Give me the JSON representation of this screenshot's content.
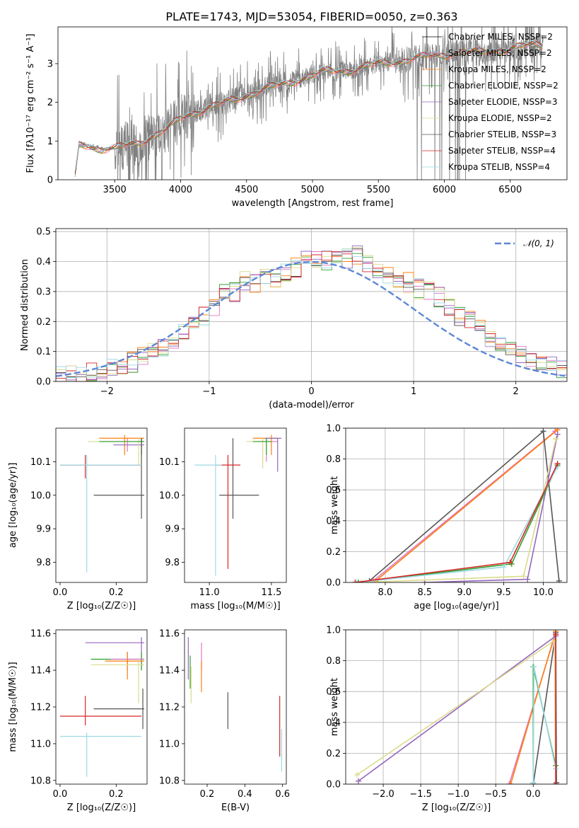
{
  "title": "PLATE=1743, MJD=53054, FIBERID=0050, z=0.363",
  "colors": [
    "#000000",
    "#e377c2",
    "#ff7f0e",
    "#2ca02c",
    "#9467bd",
    "#dbdb8d",
    "#555555",
    "#d62728",
    "#9edae5"
  ],
  "chart_data": [
    {
      "id": "spectrum",
      "type": "line",
      "xlabel": "wavelength [Angstrom, rest frame]",
      "ylabel": "Flux [f$_\\lambda$10$^{-17}$ erg cm$^{-2}$ s$^{-1}$ A$^{-1}$]",
      "ylabel_text": "Flux [fλ10⁻¹⁷ erg cm⁻² s⁻¹ A⁻¹]",
      "xlim": [
        3070,
        6930
      ],
      "ylim": [
        0,
        3.95
      ],
      "xticks": [
        3500,
        4000,
        4500,
        5000,
        5500,
        6000,
        6500
      ],
      "yticks": [
        0,
        1,
        2,
        3
      ],
      "observed_color": "#808080",
      "continuum": {
        "x": [
          3200,
          3230,
          3300,
          3400,
          3500,
          3700,
          3900,
          4000,
          4100,
          4300,
          4500,
          4700,
          4900,
          5100,
          5300,
          5500,
          5700,
          5900,
          6100,
          6300,
          6500,
          6700,
          6750
        ],
        "y": [
          0.1,
          0.9,
          0.9,
          0.8,
          0.8,
          1.0,
          1.3,
          1.6,
          1.75,
          1.95,
          2.2,
          2.4,
          2.6,
          2.8,
          2.85,
          3.0,
          3.1,
          3.2,
          3.3,
          3.3,
          3.4,
          3.5,
          3.5
        ]
      },
      "legend": [
        "Chabrier MILES, N$_{SSP}$=2",
        "Salpeter MILES, N$_{SSP}$=2",
        "Kroupa MILES, N$_{SSP}$=2",
        "Chabrier ELODIE, N$_{SSP}$=2",
        "Salpeter ELODIE, N$_{SSP}$=3",
        "Kroupa ELODIE, N$_{SSP}$=2",
        "Chabrier STELIB, N$_{SSP}$=3",
        "Salpeter STELIB, N$_{SSP}$=4",
        "Kroupa STELIB, N$_{SSP}$=4"
      ],
      "legend_text": [
        "Chabrier MILES, NSSP=2",
        "Salpeter MILES, NSSP=2",
        "Kroupa MILES, NSSP=2",
        "Chabrier ELODIE, NSSP=2",
        "Salpeter ELODIE, NSSP=3",
        "Kroupa ELODIE, NSSP=2",
        "Chabrier STELIB, NSSP=3",
        "Salpeter STELIB, NSSP=4",
        "Kroupa STELIB, NSSP=4"
      ],
      "legend_placement": "upper right",
      "grid": false
    },
    {
      "id": "residuals",
      "type": "histogram",
      "xlabel": "(data-model)/error",
      "ylabel": "Normed distribution",
      "xlim": [
        -2.5,
        2.5
      ],
      "ylim": [
        0,
        0.51
      ],
      "xticks": [
        -2,
        -1,
        0,
        1,
        2
      ],
      "yticks": [
        0.0,
        0.1,
        0.2,
        0.3,
        0.4,
        0.5
      ],
      "bin_width": 0.1,
      "bin_start": -2.5,
      "envelope": [
        0.015,
        0.02,
        0.022,
        0.03,
        0.035,
        0.045,
        0.055,
        0.065,
        0.09,
        0.1,
        0.11,
        0.14,
        0.17,
        0.2,
        0.22,
        0.25,
        0.29,
        0.3,
        0.34,
        0.33,
        0.36,
        0.34,
        0.36,
        0.38,
        0.4,
        0.41,
        0.4,
        0.41,
        0.41,
        0.42,
        0.4,
        0.38,
        0.36,
        0.34,
        0.33,
        0.31,
        0.3,
        0.28,
        0.25,
        0.22,
        0.2,
        0.17,
        0.15,
        0.13,
        0.11,
        0.09,
        0.075,
        0.06,
        0.05,
        0.04
      ],
      "legend": [
        "$\\mathcal{N}(0,1)$"
      ],
      "legend_text": [
        "𝒩(0, 1)"
      ],
      "legend_placement": "upper right",
      "gaussian": {
        "mu": 0,
        "sigma": 1,
        "color": "#5b87d6",
        "style": "dashed"
      },
      "grid": true
    },
    {
      "id": "age-vs-Z",
      "type": "errorbar",
      "xlabel": "Z [$\\log_{10}(Z/Z_\\odot)$]",
      "xlabel_text": "Z [log₁₀(Z/Z☉)]",
      "ylabel": "age  [$\\log_{10}(age/yr)$]",
      "ylabel_text": "age  [log₁₀(age/yr)]",
      "xlim": [
        -0.015,
        0.31
      ],
      "ylim": [
        9.74,
        10.2
      ],
      "xticks": [
        0.0,
        0.2
      ],
      "yticks": [
        9.8,
        9.9,
        10.0,
        10.1
      ],
      "bars": [
        {
          "c": "#e377c2",
          "x": 0.24,
          "xe": [
            0.14,
            0.3
          ],
          "y": 10.16,
          "ye": [
            10.13,
            10.17
          ]
        },
        {
          "c": "#ff7f0e",
          "x": 0.23,
          "xe": [
            0.14,
            0.3
          ],
          "y": 10.17,
          "ye": [
            10.12,
            10.18
          ]
        },
        {
          "c": "#9467bd",
          "x": 0.29,
          "xe": [
            0.19,
            0.3
          ],
          "y": 10.15,
          "ye": [
            10.12,
            10.17
          ]
        },
        {
          "c": "#dbdb8d",
          "x": 0.28,
          "xe": [
            0.1,
            0.3
          ],
          "y": 10.16,
          "ye": [
            10.09,
            10.17
          ]
        },
        {
          "c": "#2ca02c",
          "x": 0.29,
          "xe": [
            0.14,
            0.3
          ],
          "y": 10.16,
          "ye": [
            10.12,
            10.17
          ]
        },
        {
          "c": "#555555",
          "x": 0.29,
          "xe": [
            0.12,
            0.3
          ],
          "y": 10.0,
          "ye": [
            9.93,
            10.17
          ]
        },
        {
          "c": "#d62728",
          "x": 0.09,
          "xe": [
            0.0,
            0.29
          ],
          "y": 10.09,
          "ye": [
            10.05,
            10.12
          ]
        },
        {
          "c": "#9edae5",
          "x": 0.095,
          "xe": [
            0.0,
            0.29
          ],
          "y": 10.09,
          "ye": [
            9.77,
            10.12
          ]
        }
      ]
    },
    {
      "id": "age-vs-mass",
      "type": "errorbar",
      "xlabel": "mass [$\\log_{10}(M/M_\\odot)$]",
      "xlabel_text": "mass [log₁₀(M/M☉)]",
      "ylabel": "",
      "xlim": [
        10.8,
        11.62
      ],
      "ylim": [
        9.74,
        10.2
      ],
      "xticks": [
        11.0,
        11.5
      ],
      "yticks": [
        9.8,
        9.9,
        10.0,
        10.1
      ],
      "bars": [
        {
          "c": "#e377c2",
          "x": 11.46,
          "xe": [
            11.4,
            11.55
          ],
          "y": 10.16,
          "ye": [
            10.1,
            10.17
          ]
        },
        {
          "c": "#ff7f0e",
          "x": 11.5,
          "xe": [
            11.35,
            11.55
          ],
          "y": 10.17,
          "ye": [
            10.12,
            10.18
          ]
        },
        {
          "c": "#9467bd",
          "x": 11.55,
          "xe": [
            11.45,
            11.58
          ],
          "y": 10.17,
          "ye": [
            10.07,
            10.17
          ]
        },
        {
          "c": "#dbdb8d",
          "x": 11.43,
          "xe": [
            11.3,
            11.5
          ],
          "y": 10.16,
          "ye": [
            10.08,
            10.17
          ]
        },
        {
          "c": "#2ca02c",
          "x": 11.46,
          "xe": [
            11.35,
            11.5
          ],
          "y": 10.16,
          "ye": [
            10.12,
            10.17
          ]
        },
        {
          "c": "#555555",
          "x": 11.19,
          "xe": [
            11.08,
            11.4
          ],
          "y": 10.0,
          "ye": [
            9.93,
            10.17
          ]
        },
        {
          "c": "#d62728",
          "x": 11.15,
          "xe": [
            11.05,
            11.25
          ],
          "y": 10.09,
          "ye": [
            9.78,
            10.12
          ]
        },
        {
          "c": "#9edae5",
          "x": 11.05,
          "xe": [
            10.88,
            11.1
          ],
          "y": 10.09,
          "ye": [
            9.76,
            10.12
          ]
        }
      ]
    },
    {
      "id": "weight-vs-age",
      "type": "line",
      "xlabel": "age  [$\\log_{10}(age/yr)$]",
      "xlabel_text": "age  [log₁₀(age/yr)]",
      "ylabel": "mass weight",
      "xlim": [
        7.5,
        10.3
      ],
      "ylim": [
        0,
        1
      ],
      "xticks": [
        8.0,
        8.5,
        9.0,
        9.5,
        10.0
      ],
      "yticks": [
        0.0,
        0.2,
        0.4,
        0.6,
        0.8,
        1.0
      ],
      "grid": true,
      "series": [
        {
          "c": "#e377c2",
          "x": [
            7.85,
            10.15
          ],
          "y": [
            0.01,
            0.98
          ]
        },
        {
          "c": "#ff7f0e",
          "x": [
            7.88,
            10.18
          ],
          "y": [
            0.01,
            0.99
          ]
        },
        {
          "c": "#555555",
          "x": [
            7.8,
            10.0,
            10.2
          ],
          "y": [
            0.01,
            0.98,
            0.01
          ]
        },
        {
          "c": "#9467bd",
          "x": [
            8.5,
            9.8,
            10.18
          ],
          "y": [
            0.0,
            0.02,
            0.96
          ]
        },
        {
          "c": "#dbdb8d",
          "x": [
            7.7,
            9.75,
            10.16
          ],
          "y": [
            0.0,
            0.04,
            0.93
          ]
        },
        {
          "c": "#2ca02c",
          "x": [
            7.66,
            9.6,
            10.18
          ],
          "y": [
            0.0,
            0.12,
            0.76
          ]
        },
        {
          "c": "#9edae5",
          "x": [
            7.64,
            9.5,
            10.18
          ],
          "y": [
            0.0,
            0.1,
            0.75
          ]
        },
        {
          "c": "#d62728",
          "x": [
            7.62,
            9.58,
            10.18
          ],
          "y": [
            0.0,
            0.13,
            0.77
          ]
        }
      ]
    },
    {
      "id": "mass-vs-Z",
      "type": "errorbar",
      "xlabel": "Z [$\\log_{10}(Z/Z_\\odot)$]",
      "xlabel_text": "Z [log₁₀(Z/Z☉)]",
      "ylabel": "mass [$\\log_{10}(M/M_\\odot)$]",
      "ylabel_text": "mass [log₁₀(M/M☉)]",
      "xlim": [
        -0.015,
        0.31
      ],
      "ylim": [
        10.78,
        11.62
      ],
      "xticks": [
        0.0,
        0.2
      ],
      "yticks": [
        10.8,
        11.0,
        11.2,
        11.4,
        11.6
      ],
      "bars": [
        {
          "c": "#9467bd",
          "x": 0.29,
          "xe": [
            0.09,
            0.3
          ],
          "y": 11.55,
          "ye": [
            11.4,
            11.58
          ]
        },
        {
          "c": "#2ca02c",
          "x": 0.29,
          "xe": [
            0.11,
            0.3
          ],
          "y": 11.46,
          "ye": [
            11.4,
            11.5
          ]
        },
        {
          "c": "#e377c2",
          "x": 0.24,
          "xe": [
            0.18,
            0.3
          ],
          "y": 11.46,
          "ye": [
            11.4,
            11.5
          ]
        },
        {
          "c": "#ff7f0e",
          "x": 0.24,
          "xe": [
            0.16,
            0.3
          ],
          "y": 11.45,
          "ye": [
            11.35,
            11.5
          ]
        },
        {
          "c": "#dbdb8d",
          "x": 0.28,
          "xe": [
            0.11,
            0.3
          ],
          "y": 11.43,
          "ye": [
            11.22,
            11.45
          ]
        },
        {
          "c": "#555555",
          "x": 0.295,
          "xe": [
            0.12,
            0.3
          ],
          "y": 11.19,
          "ye": [
            11.08,
            11.3
          ]
        },
        {
          "c": "#d62728",
          "x": 0.09,
          "xe": [
            0.0,
            0.29
          ],
          "y": 11.15,
          "ye": [
            11.1,
            11.26
          ]
        },
        {
          "c": "#9edae5",
          "x": 0.095,
          "xe": [
            0.0,
            0.29
          ],
          "y": 11.04,
          "ye": [
            10.82,
            11.06
          ]
        }
      ]
    },
    {
      "id": "mass-vs-EBV",
      "type": "errorbar",
      "xlabel": "E(B-V)",
      "ylabel": "",
      "xlim": [
        0.08,
        0.62
      ],
      "ylim": [
        10.78,
        11.62
      ],
      "xticks": [
        0.2,
        0.4,
        0.6
      ],
      "yticks": [
        10.8,
        11.0,
        11.2,
        11.4,
        11.6
      ],
      "bars": [
        {
          "c": "#9467bd",
          "x": 0.1,
          "y": 11.46,
          "ye": [
            11.35,
            11.58
          ]
        },
        {
          "c": "#2ca02c",
          "x": 0.11,
          "y": 11.42,
          "ye": [
            11.3,
            11.48
          ]
        },
        {
          "c": "#dbdb8d",
          "x": 0.115,
          "y": 11.38,
          "ye": [
            11.22,
            11.42
          ]
        },
        {
          "c": "#e377c2",
          "x": 0.17,
          "y": 11.45,
          "ye": [
            11.4,
            11.55
          ]
        },
        {
          "c": "#ff7f0e",
          "x": 0.17,
          "y": 11.35,
          "ye": [
            11.28,
            11.45
          ]
        },
        {
          "c": "#555555",
          "x": 0.31,
          "y": 11.19,
          "ye": [
            11.08,
            11.28
          ]
        },
        {
          "c": "#d62728",
          "x": 0.585,
          "y": 11.1,
          "ye": [
            10.93,
            11.26
          ]
        },
        {
          "c": "#9edae5",
          "x": 0.595,
          "y": 11.0,
          "ye": [
            10.85,
            11.08
          ]
        }
      ]
    },
    {
      "id": "weight-vs-Z",
      "type": "line",
      "xlabel": "Z [$\\log_{10}(Z/Z_\\odot)$]",
      "xlabel_text": "Z [log₁₀(Z/Z☉)]",
      "ylabel": "mass weight",
      "xlim": [
        -2.5,
        0.45
      ],
      "ylim": [
        0,
        1
      ],
      "xticks": [
        -2.0,
        -1.5,
        -1.0,
        -0.5,
        0.0
      ],
      "yticks": [
        0.0,
        0.2,
        0.4,
        0.6,
        0.8,
        1.0
      ],
      "grid": true,
      "series": [
        {
          "c": "#e377c2",
          "x": [
            -0.32,
            0.3
          ],
          "y": [
            0.0,
            0.98
          ]
        },
        {
          "c": "#ff7f0e",
          "x": [
            -0.3,
            0.3
          ],
          "y": [
            0.0,
            0.99
          ]
        },
        {
          "c": "#555555",
          "x": [
            0.0,
            0.3,
            0.31
          ],
          "y": [
            0.0,
            0.98,
            0.01
          ]
        },
        {
          "c": "#9467bd",
          "x": [
            -2.33,
            0.3,
            0.3
          ],
          "y": [
            0.02,
            0.96,
            0.0
          ]
        },
        {
          "c": "#dbdb8d",
          "x": [
            -2.35,
            0.28,
            0.3
          ],
          "y": [
            0.06,
            0.93,
            0.0
          ]
        },
        {
          "c": "#2ca02c",
          "x": [
            0.0,
            0.0,
            0.3
          ],
          "y": [
            0.01,
            0.76,
            0.12
          ]
        },
        {
          "c": "#9edae5",
          "x": [
            0.0,
            0.01,
            0.3
          ],
          "y": [
            0.01,
            0.76,
            0.1
          ]
        },
        {
          "c": "#d62728",
          "x": [
            0.3,
            0.3
          ],
          "y": [
            0.0,
            0.97
          ]
        }
      ]
    }
  ]
}
